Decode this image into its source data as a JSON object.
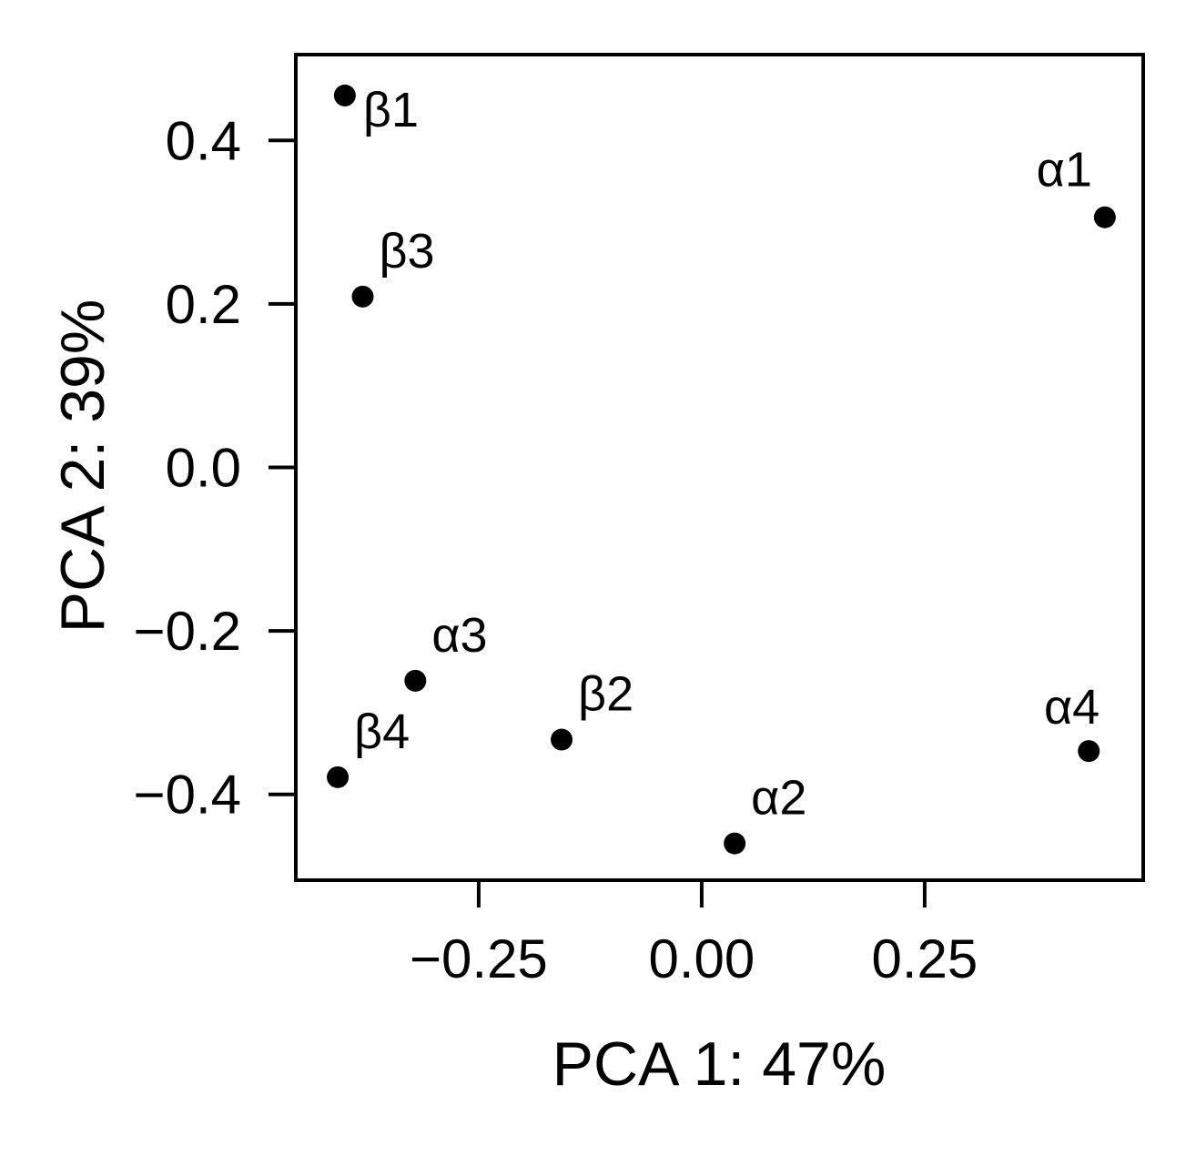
{
  "chart_data": {
    "type": "scatter",
    "title": "",
    "xlabel": "PCA 1: 47%",
    "ylabel": "PCA 2: 39%",
    "xlim": [
      -0.455,
      0.495
    ],
    "ylim": [
      -0.505,
      0.505
    ],
    "xticks": [
      -0.25,
      0.0,
      0.25
    ],
    "xtick_labels": [
      "−0.25",
      "0.00",
      "0.25"
    ],
    "yticks": [
      0.4,
      0.2,
      0.0,
      -0.2,
      -0.4
    ],
    "ytick_labels": [
      "0.4",
      "0.2",
      "0.0",
      "−0.2",
      "−0.4"
    ],
    "grid": false,
    "legend": null,
    "marker_color": "#000000",
    "points": [
      {
        "label": "β1",
        "x": -0.4,
        "y": 0.455
      },
      {
        "label": "α1",
        "x": 0.452,
        "y": 0.306
      },
      {
        "label": "β3",
        "x": -0.38,
        "y": 0.209
      },
      {
        "label": "α3",
        "x": -0.321,
        "y": -0.261
      },
      {
        "label": "β2",
        "x": -0.157,
        "y": -0.333
      },
      {
        "label": "β4",
        "x": -0.408,
        "y": -0.379
      },
      {
        "label": "α2",
        "x": 0.037,
        "y": -0.46
      },
      {
        "label": "α4",
        "x": 0.434,
        "y": -0.347
      }
    ]
  }
}
